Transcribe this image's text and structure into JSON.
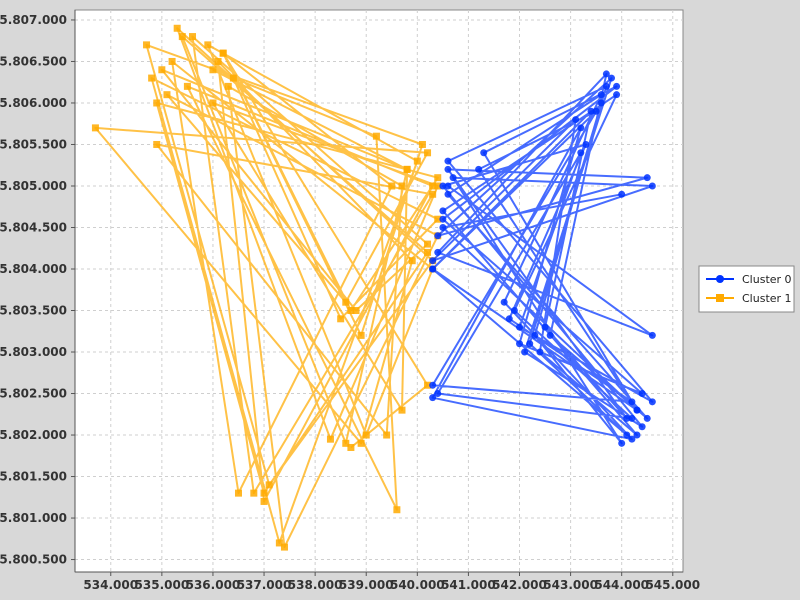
{
  "chart_data": {
    "type": "line",
    "title": "",
    "xlabel": "",
    "ylabel": "",
    "xlim": [
      533.3,
      545.2
    ],
    "ylim": [
      5800.35,
      5807.12
    ],
    "x_ticks": [
      "534.000",
      "535.000",
      "536.000",
      "537.000",
      "538.000",
      "539.000",
      "540.000",
      "541.000",
      "542.000",
      "543.000",
      "544.000",
      "545.000"
    ],
    "x_tick_values": [
      534,
      535,
      536,
      537,
      538,
      539,
      540,
      541,
      542,
      543,
      544,
      545
    ],
    "y_ticks": [
      "5.800.500",
      "5.801.000",
      "5.801.500",
      "5.802.000",
      "5.802.500",
      "5.803.000",
      "5.803.500",
      "5.804.000",
      "5.804.500",
      "5.805.000",
      "5.805.500",
      "5.806.000",
      "5.806.500",
      "5.807.000"
    ],
    "y_tick_values": [
      5800.5,
      5801.0,
      5801.5,
      5802.0,
      5802.5,
      5803.0,
      5803.5,
      5804.0,
      5804.5,
      5805.0,
      5805.5,
      5806.0,
      5806.5,
      5807.0
    ],
    "grid": true,
    "legend_position": "right",
    "series": [
      {
        "name": "Cluster 0",
        "color": "#0033ff",
        "marker": "circle",
        "points": [
          [
            544.0,
            5804.9
          ],
          [
            540.5,
            5804.5
          ],
          [
            544.3,
            5802.3
          ],
          [
            541.2,
            5805.2
          ],
          [
            543.5,
            5805.9
          ],
          [
            540.3,
            5804.0
          ],
          [
            544.1,
            5802.0
          ],
          [
            542.2,
            5803.1
          ],
          [
            543.7,
            5806.2
          ],
          [
            540.6,
            5805.3
          ],
          [
            544.6,
            5802.4
          ],
          [
            542.0,
            5803.3
          ],
          [
            543.2,
            5805.4
          ],
          [
            540.4,
            5802.5
          ],
          [
            544.2,
            5802.2
          ],
          [
            541.9,
            5803.5
          ],
          [
            543.9,
            5806.1
          ],
          [
            540.5,
            5804.7
          ],
          [
            544.3,
            5802.0
          ],
          [
            542.4,
            5803.0
          ],
          [
            543.1,
            5805.8
          ],
          [
            540.3,
            5804.1
          ],
          [
            544.6,
            5805.0
          ],
          [
            540.7,
            5805.1
          ],
          [
            544.0,
            5801.9
          ],
          [
            542.3,
            5803.2
          ],
          [
            543.6,
            5806.0
          ],
          [
            540.3,
            5802.6
          ],
          [
            544.2,
            5802.4
          ],
          [
            541.8,
            5803.4
          ],
          [
            543.3,
            5805.5
          ],
          [
            540.5,
            5805.0
          ],
          [
            544.4,
            5802.1
          ],
          [
            542.1,
            5803.0
          ],
          [
            543.8,
            5806.3
          ],
          [
            540.4,
            5804.4
          ],
          [
            544.5,
            5805.1
          ],
          [
            540.6,
            5805.2
          ],
          [
            544.1,
            5802.2
          ],
          [
            542.5,
            5803.3
          ],
          [
            543.4,
            5805.9
          ],
          [
            540.3,
            5804.0
          ],
          [
            544.3,
            5802.3
          ],
          [
            541.3,
            5805.4
          ],
          [
            543.9,
            5806.2
          ],
          [
            540.5,
            5804.6
          ],
          [
            544.4,
            5802.5
          ],
          [
            542.0,
            5803.1
          ],
          [
            543.2,
            5805.7
          ],
          [
            540.3,
            5802.45
          ],
          [
            544.2,
            5801.95
          ],
          [
            541.7,
            5803.6
          ],
          [
            543.6,
            5806.1
          ],
          [
            540.6,
            5804.9
          ],
          [
            544.5,
            5802.2
          ],
          [
            542.6,
            5803.2
          ],
          [
            543.7,
            5806.35
          ],
          [
            540.4,
            5804.2
          ],
          [
            544.6,
            5803.2
          ],
          [
            540.6,
            5805.0
          ]
        ]
      },
      {
        "name": "Cluster 1",
        "color": "#ffaa00",
        "marker": "square",
        "points": [
          [
            536.0,
            5806.4
          ],
          [
            539.8,
            5805.2
          ],
          [
            538.6,
            5801.9
          ],
          [
            535.4,
            5806.8
          ],
          [
            540.2,
            5804.2
          ],
          [
            537.0,
            5801.3
          ],
          [
            534.9,
            5806.0
          ],
          [
            540.4,
            5805.1
          ],
          [
            538.7,
            5803.5
          ],
          [
            536.2,
            5806.6
          ],
          [
            539.5,
            5805.0
          ],
          [
            536.5,
            5801.3
          ],
          [
            535.2,
            5806.5
          ],
          [
            540.3,
            5804.0
          ],
          [
            539.0,
            5802.0
          ],
          [
            535.9,
            5806.7
          ],
          [
            540.0,
            5805.3
          ],
          [
            537.3,
            5800.7
          ],
          [
            534.8,
            5806.3
          ],
          [
            540.4,
            5804.6
          ],
          [
            538.5,
            5803.4
          ],
          [
            536.4,
            5806.3
          ],
          [
            539.2,
            5805.6
          ],
          [
            539.6,
            5801.1
          ],
          [
            535.5,
            5806.2
          ],
          [
            540.3,
            5805.0
          ],
          [
            537.0,
            5801.2
          ],
          [
            536.1,
            5806.5
          ],
          [
            539.9,
            5804.1
          ],
          [
            538.9,
            5801.9
          ],
          [
            533.7,
            5805.7
          ],
          [
            540.2,
            5805.4
          ],
          [
            538.6,
            5803.6
          ],
          [
            535.1,
            5806.1
          ],
          [
            540.4,
            5804.4
          ],
          [
            537.4,
            5800.65
          ],
          [
            536.3,
            5806.2
          ],
          [
            539.7,
            5805.0
          ],
          [
            539.4,
            5802.0
          ],
          [
            534.9,
            5805.5
          ],
          [
            540.3,
            5804.9
          ],
          [
            536.8,
            5801.3
          ],
          [
            535.6,
            5806.8
          ],
          [
            540.2,
            5804.3
          ],
          [
            538.8,
            5803.5
          ],
          [
            535.0,
            5806.4
          ],
          [
            539.8,
            5805.2
          ],
          [
            539.7,
            5802.3
          ],
          [
            536.0,
            5806.0
          ],
          [
            540.4,
            5805.0
          ],
          [
            538.3,
            5801.95
          ],
          [
            535.3,
            5806.9
          ],
          [
            540.3,
            5804.1
          ],
          [
            537.1,
            5801.4
          ],
          [
            534.7,
            5806.7
          ],
          [
            540.1,
            5805.5
          ],
          [
            538.9,
            5803.2
          ],
          [
            536.2,
            5806.6
          ],
          [
            540.2,
            5802.6
          ],
          [
            538.7,
            5801.85
          ]
        ]
      }
    ]
  }
}
